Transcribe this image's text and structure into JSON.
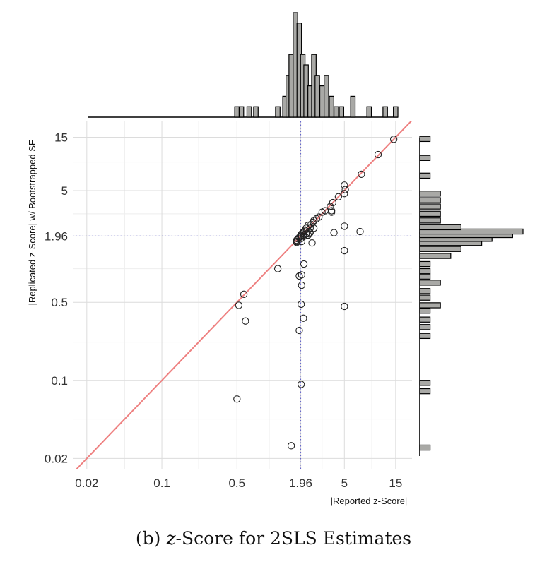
{
  "chart_data": {
    "type": "scatter",
    "xlabel": "|Reported z-Score|",
    "ylabel": "|Replicated z-Score| w/ Bootstrapped SE",
    "scale": "log",
    "xlim": [
      0.015,
      20
    ],
    "ylim": [
      0.015,
      20
    ],
    "x_ticks": [
      0.02,
      0.1,
      0.5,
      1.96,
      5,
      15
    ],
    "x_tick_labels": [
      "0.02",
      "0.1",
      "0.5",
      "1.96",
      "5",
      "15"
    ],
    "y_ticks": [
      0.02,
      0.1,
      0.5,
      1.96,
      5,
      15
    ],
    "y_tick_labels": [
      "0.02",
      "0.1",
      "0.5",
      "1.96",
      "5",
      "15"
    ],
    "grid": true,
    "reference_lines": {
      "diagonal": "y = x",
      "vertical": 1.96,
      "horizontal": 1.96
    },
    "points": [
      [
        14.4,
        14.4
      ],
      [
        10.3,
        10.5
      ],
      [
        7.2,
        7.0
      ],
      [
        5.0,
        5.6
      ],
      [
        5.1,
        5.1
      ],
      [
        5.0,
        4.7
      ],
      [
        4.4,
        4.4
      ],
      [
        3.9,
        3.9
      ],
      [
        3.7,
        3.6
      ],
      [
        3.8,
        3.3
      ],
      [
        3.8,
        3.2
      ],
      [
        3.3,
        3.3
      ],
      [
        3.1,
        3.2
      ],
      [
        2.9,
        2.9
      ],
      [
        2.75,
        2.8
      ],
      [
        2.6,
        2.7
      ],
      [
        2.55,
        2.6
      ],
      [
        2.45,
        2.5
      ],
      [
        2.4,
        2.3
      ],
      [
        2.3,
        2.45
      ],
      [
        2.2,
        2.3
      ],
      [
        2.15,
        2.2
      ],
      [
        2.05,
        2.1
      ],
      [
        2.0,
        2.05
      ],
      [
        2.1,
        2.15
      ],
      [
        1.96,
        1.96
      ],
      [
        1.9,
        1.9
      ],
      [
        1.85,
        1.85
      ],
      [
        1.8,
        1.8
      ],
      [
        2.0,
        1.96
      ],
      [
        2.1,
        2.0
      ],
      [
        2.2,
        2.05
      ],
      [
        2.4,
        2.1
      ],
      [
        2.6,
        2.3
      ],
      [
        1.96,
        1.85
      ],
      [
        1.8,
        1.72
      ],
      [
        1.9,
        1.9
      ],
      [
        2.3,
        2.0
      ],
      [
        2.35,
        2.05
      ],
      [
        2.1,
        1.95
      ],
      [
        4.0,
        2.1
      ],
      [
        5.0,
        2.4
      ],
      [
        7.0,
        2.15
      ],
      [
        2.5,
        1.7
      ],
      [
        2.0,
        1.75
      ],
      [
        1.8,
        1.75
      ],
      [
        5.0,
        1.45
      ],
      [
        1.2,
        1.0
      ],
      [
        2.1,
        1.1
      ],
      [
        2.0,
        0.88
      ],
      [
        1.9,
        0.86
      ],
      [
        2.0,
        0.71
      ],
      [
        0.58,
        0.59
      ],
      [
        0.52,
        0.47
      ],
      [
        1.98,
        0.48
      ],
      [
        5.0,
        0.46
      ],
      [
        2.08,
        0.36
      ],
      [
        0.6,
        0.34
      ],
      [
        1.9,
        0.28
      ],
      [
        1.98,
        0.092
      ],
      [
        0.5,
        0.068
      ],
      [
        1.6,
        0.026
      ]
    ],
    "marginal_histograms": {
      "top": {
        "bins": [
          0.5,
          0.55,
          0.6,
          0.65,
          0.7,
          0.75,
          1.2,
          1.4,
          1.5,
          1.6,
          1.75,
          1.9,
          2.05,
          2.2,
          2.4,
          2.6,
          2.8,
          3.1,
          3.4,
          3.8,
          4.2,
          4.7,
          6.0,
          8.5,
          12.0,
          15.0
        ],
        "counts": [
          1,
          1,
          0,
          1,
          0,
          1,
          1,
          2,
          4,
          6,
          10,
          9,
          6,
          5,
          3,
          6,
          4,
          3,
          4,
          2,
          1,
          1,
          2,
          1,
          1,
          1
        ]
      },
      "right": {
        "bins": [
          0.025,
          0.08,
          0.095,
          0.25,
          0.3,
          0.35,
          0.42,
          0.47,
          0.55,
          0.63,
          0.75,
          0.85,
          0.95,
          1.1,
          1.3,
          1.5,
          1.7,
          1.85,
          2.0,
          2.15,
          2.35,
          2.7,
          3.1,
          3.6,
          4.1,
          4.7,
          6.8,
          9.8,
          14.5
        ],
        "counts": [
          1,
          1,
          1,
          1,
          1,
          1,
          1,
          2,
          1,
          1,
          2,
          1,
          1,
          1,
          3,
          4,
          6,
          7,
          9,
          10,
          4,
          2,
          2,
          2,
          2,
          2,
          1,
          1,
          1
        ]
      }
    }
  },
  "caption": {
    "prefix": "(b) ",
    "italic": "z",
    "rest": "-Score for 2SLS Estimates"
  },
  "colors": {
    "points": "#222222",
    "diagonal": "#ee8080",
    "dotted": "#6666cc",
    "grid": "#dcdcdc",
    "bars": "#a9a9a6"
  }
}
